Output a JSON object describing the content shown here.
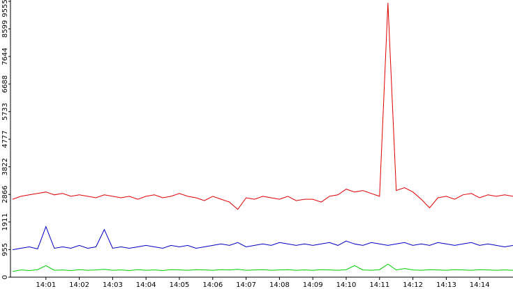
{
  "chart_data": {
    "type": "line",
    "x": [
      0,
      0.25,
      0.5,
      0.75,
      1,
      1.25,
      1.5,
      1.75,
      2,
      2.25,
      2.5,
      2.75,
      3,
      3.25,
      3.5,
      3.75,
      4,
      4.25,
      4.5,
      4.75,
      5,
      5.25,
      5.5,
      5.75,
      6,
      6.25,
      6.5,
      6.75,
      7,
      7.25,
      7.5,
      7.75,
      8,
      8.25,
      8.5,
      8.75,
      9,
      9.25,
      9.5,
      9.75,
      10,
      10.25,
      10.5,
      10.75,
      11,
      11.25,
      11.5,
      11.75,
      12,
      12.25,
      12.5,
      12.75,
      13,
      13.25,
      13.5,
      13.75,
      14,
      14.25,
      14.5,
      14.75,
      15
    ],
    "series": [
      {
        "name": "red",
        "color": "#e00000",
        "values": [
          2700,
          2800,
          2850,
          2900,
          2950,
          2850,
          2900,
          2800,
          2850,
          2800,
          2750,
          2850,
          2800,
          2750,
          2800,
          2700,
          2800,
          2850,
          2750,
          2800,
          2900,
          2800,
          2750,
          2650,
          2800,
          2700,
          2600,
          2350,
          2750,
          2700,
          2800,
          2750,
          2700,
          2800,
          2650,
          2700,
          2700,
          2600,
          2800,
          2850,
          3050,
          2950,
          3000,
          2900,
          2800,
          9500,
          3000,
          3100,
          2950,
          2700,
          2400,
          2750,
          2800,
          2700,
          2850,
          2900,
          2750,
          2850,
          2800,
          2850,
          2800
        ]
      },
      {
        "name": "blue",
        "color": "#0000c0",
        "values": [
          950,
          1000,
          1050,
          980,
          1750,
          1000,
          1050,
          1000,
          1100,
          1000,
          1050,
          1650,
          1000,
          1050,
          1000,
          1050,
          1100,
          1050,
          1000,
          1100,
          1050,
          1100,
          1000,
          1050,
          1100,
          1150,
          1100,
          1200,
          1050,
          1100,
          1150,
          1100,
          1200,
          1150,
          1100,
          1150,
          1100,
          1150,
          1200,
          1100,
          1250,
          1150,
          1100,
          1200,
          1150,
          1100,
          1150,
          1200,
          1100,
          1150,
          1100,
          1200,
          1150,
          1100,
          1150,
          1200,
          1100,
          1150,
          1100,
          1050,
          1100
        ]
      },
      {
        "name": "green",
        "color": "#00d000",
        "values": [
          200,
          250,
          230,
          260,
          400,
          240,
          250,
          230,
          260,
          240,
          250,
          270,
          240,
          250,
          230,
          260,
          240,
          250,
          230,
          260,
          250,
          240,
          260,
          250,
          240,
          260,
          250,
          270,
          240,
          250,
          260,
          240,
          250,
          260,
          240,
          250,
          240,
          260,
          250,
          240,
          260,
          400,
          250,
          240,
          260,
          450,
          250,
          300,
          250,
          240,
          260,
          250,
          240,
          260,
          250,
          240,
          260,
          250,
          240,
          250,
          240
        ]
      }
    ],
    "xlim": [
      0,
      15
    ],
    "xticks": [
      {
        "value": 1,
        "label": "14:01"
      },
      {
        "value": 2,
        "label": "14:02"
      },
      {
        "value": 3,
        "label": "14:03"
      },
      {
        "value": 4,
        "label": "14:04"
      },
      {
        "value": 5,
        "label": "14:05"
      },
      {
        "value": 6,
        "label": "14:06"
      },
      {
        "value": 7,
        "label": "14:07"
      },
      {
        "value": 8,
        "label": "14:08"
      },
      {
        "value": 9,
        "label": "14:09"
      },
      {
        "value": 10,
        "label": "14:10"
      },
      {
        "value": 11,
        "label": "14:11"
      },
      {
        "value": 12,
        "label": "14:12"
      },
      {
        "value": 13,
        "label": "14:13"
      },
      {
        "value": 14,
        "label": "14:14"
      }
    ],
    "ylim": [
      0,
      9600
    ],
    "yticks": [
      0,
      955,
      1911,
      2866,
      3822,
      4777,
      5733,
      6688,
      7644,
      8599,
      9555
    ]
  }
}
